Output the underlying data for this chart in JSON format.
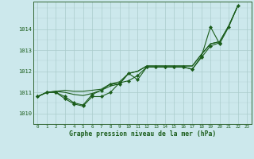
{
  "xlabel": "Graphe pression niveau de la mer (hPa)",
  "background_color": "#cce8ec",
  "grid_color": "#b0d4d8",
  "line_color": "#1a5c1a",
  "ylim": [
    1009.5,
    1015.3
  ],
  "xlim": [
    -0.5,
    23.5
  ],
  "yticks": [
    1010,
    1011,
    1012,
    1013,
    1014
  ],
  "xticks": [
    0,
    1,
    2,
    3,
    4,
    5,
    6,
    7,
    8,
    9,
    10,
    11,
    12,
    13,
    14,
    15,
    16,
    17,
    18,
    19,
    20,
    21,
    22,
    23
  ],
  "series": [
    {
      "y": [
        1010.8,
        1011.0,
        1011.0,
        1010.8,
        1010.5,
        1010.4,
        1010.9,
        1011.1,
        1011.4,
        1011.4,
        1011.9,
        1011.6,
        1012.2,
        1012.2,
        1012.2,
        1012.2,
        1012.2,
        1012.1,
        1012.7,
        1014.1,
        1013.3,
        1014.1,
        1015.1,
        null
      ],
      "markers": true
    },
    {
      "y": [
        1010.8,
        1011.0,
        1011.05,
        1011.1,
        1011.05,
        1011.05,
        1011.1,
        1011.15,
        1011.4,
        1011.5,
        1011.9,
        1012.0,
        1012.25,
        1012.25,
        1012.25,
        1012.25,
        1012.25,
        1012.25,
        1012.8,
        1013.3,
        1013.4,
        1014.15,
        1015.1,
        null
      ],
      "markers": false
    },
    {
      "y": [
        1010.8,
        1011.0,
        1011.0,
        1010.7,
        1010.45,
        1010.35,
        1010.8,
        1010.8,
        1011.0,
        1011.45,
        1011.55,
        1011.8,
        1012.2,
        1012.2,
        1012.2,
        1012.2,
        1012.2,
        1012.1,
        1012.65,
        1013.2,
        1013.35,
        null,
        null,
        null
      ],
      "markers": true
    },
    {
      "y": [
        1010.8,
        1011.0,
        1011.05,
        1011.0,
        1010.9,
        1010.85,
        1010.95,
        1011.1,
        1011.3,
        1011.4,
        1011.9,
        1012.0,
        1012.25,
        1012.25,
        1012.25,
        1012.25,
        1012.25,
        1012.25,
        1012.8,
        1013.3,
        1013.4,
        1014.15,
        1015.1,
        null
      ],
      "markers": false
    }
  ]
}
